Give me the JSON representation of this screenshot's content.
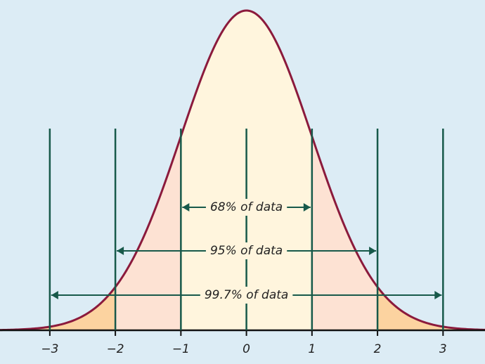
{
  "chart_data": {
    "type": "normal",
    "mean": 0,
    "sd": 1,
    "xlim": [
      -3.76,
      3.64
    ],
    "xticks": [
      {
        "value": -3,
        "label": "−3"
      },
      {
        "value": -2,
        "label": "−2"
      },
      {
        "value": -1,
        "label": "−1"
      },
      0,
      1,
      2,
      3
    ],
    "intervals": [
      {
        "label": "68% of data",
        "from": -1,
        "to": 1
      },
      {
        "label": "95% of data",
        "from": -2,
        "to": 2
      },
      {
        "label": "99.7% of data",
        "from": -3,
        "to": 3
      }
    ],
    "colors": {
      "curve": "#8b1a3c",
      "center": "#fff5dd",
      "middle": "#fde2d3",
      "tail": "#fcd3a0",
      "lines": "#17594a",
      "background": "#dcecf5"
    }
  }
}
